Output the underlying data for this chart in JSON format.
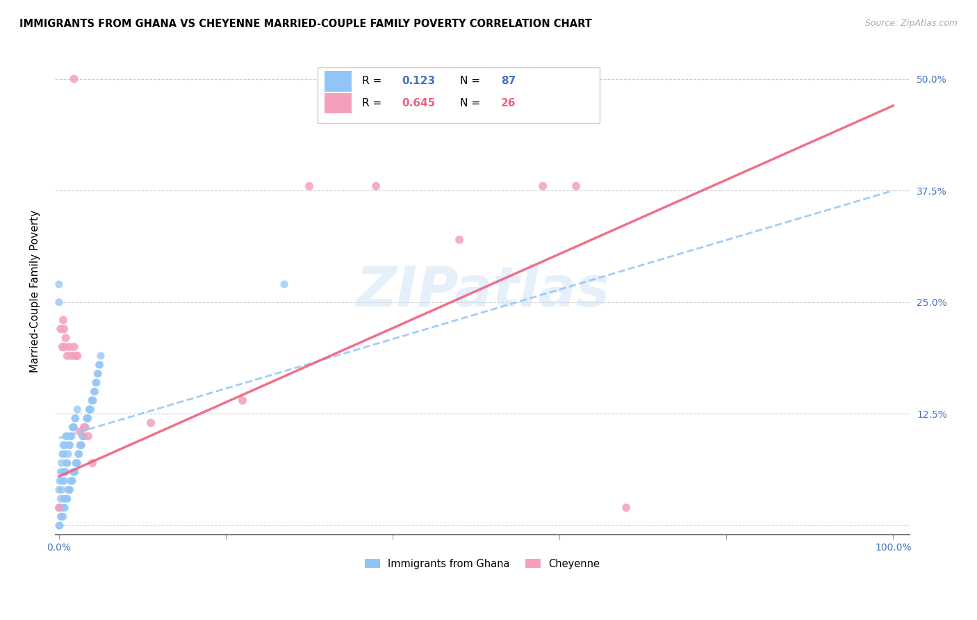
{
  "title": "IMMIGRANTS FROM GHANA VS CHEYENNE MARRIED-COUPLE FAMILY POVERTY CORRELATION CHART",
  "source": "Source: ZipAtlas.com",
  "ylabel": "Married-Couple Family Poverty",
  "watermark": "ZIPatlas",
  "ghana_color": "#92c5f7",
  "cheyenne_color": "#f4a0bc",
  "ghana_line_color": "#92c5f7",
  "cheyenne_line_color": "#f06080",
  "ghana_R": 0.123,
  "ghana_N": 87,
  "cheyenne_R": 0.645,
  "cheyenne_N": 26,
  "ghana_line_x0": 0.0,
  "ghana_line_y0": 0.098,
  "ghana_line_x1": 1.0,
  "ghana_line_y1": 0.375,
  "cheyenne_line_x0": 0.0,
  "cheyenne_line_y0": 0.055,
  "cheyenne_line_x1": 1.0,
  "cheyenne_line_y1": 0.47,
  "xlim": [
    0.0,
    1.0
  ],
  "ylim": [
    0.0,
    0.52
  ],
  "ytick_values": [
    0.0,
    0.125,
    0.25,
    0.375,
    0.5
  ],
  "ytick_labels": [
    "",
    "12.5%",
    "25.0%",
    "37.5%",
    "50.0%"
  ],
  "ghana_x": [
    0.0,
    0.0,
    0.0,
    0.001,
    0.001,
    0.001,
    0.002,
    0.002,
    0.002,
    0.003,
    0.003,
    0.003,
    0.004,
    0.004,
    0.004,
    0.005,
    0.005,
    0.005,
    0.005,
    0.006,
    0.006,
    0.006,
    0.007,
    0.007,
    0.007,
    0.008,
    0.008,
    0.008,
    0.009,
    0.009,
    0.01,
    0.01,
    0.01,
    0.011,
    0.011,
    0.012,
    0.012,
    0.013,
    0.013,
    0.014,
    0.014,
    0.015,
    0.015,
    0.016,
    0.016,
    0.017,
    0.017,
    0.018,
    0.018,
    0.019,
    0.019,
    0.02,
    0.02,
    0.021,
    0.022,
    0.022,
    0.023,
    0.024,
    0.025,
    0.026,
    0.027,
    0.028,
    0.029,
    0.03,
    0.031,
    0.032,
    0.033,
    0.034,
    0.035,
    0.036,
    0.037,
    0.038,
    0.039,
    0.04,
    0.041,
    0.042,
    0.043,
    0.044,
    0.045,
    0.046,
    0.047,
    0.048,
    0.049,
    0.05,
    0.0,
    0.0,
    0.27
  ],
  "ghana_y": [
    0.0,
    0.02,
    0.04,
    0.0,
    0.02,
    0.05,
    0.01,
    0.03,
    0.06,
    0.01,
    0.04,
    0.07,
    0.02,
    0.05,
    0.08,
    0.01,
    0.03,
    0.06,
    0.09,
    0.02,
    0.05,
    0.08,
    0.02,
    0.06,
    0.09,
    0.03,
    0.06,
    0.1,
    0.03,
    0.07,
    0.03,
    0.07,
    0.1,
    0.04,
    0.08,
    0.04,
    0.09,
    0.04,
    0.09,
    0.05,
    0.1,
    0.05,
    0.1,
    0.05,
    0.11,
    0.06,
    0.11,
    0.06,
    0.11,
    0.06,
    0.12,
    0.07,
    0.12,
    0.07,
    0.07,
    0.13,
    0.08,
    0.08,
    0.09,
    0.09,
    0.09,
    0.1,
    0.1,
    0.1,
    0.11,
    0.11,
    0.12,
    0.12,
    0.12,
    0.13,
    0.13,
    0.13,
    0.14,
    0.14,
    0.14,
    0.15,
    0.15,
    0.16,
    0.16,
    0.17,
    0.17,
    0.18,
    0.18,
    0.19,
    0.25,
    0.27,
    0.27
  ],
  "cheyenne_x": [
    0.018,
    0.0,
    0.002,
    0.004,
    0.005,
    0.006,
    0.007,
    0.008,
    0.01,
    0.012,
    0.015,
    0.018,
    0.02,
    0.022,
    0.025,
    0.03,
    0.035,
    0.04,
    0.11,
    0.22,
    0.3,
    0.38,
    0.48,
    0.58,
    0.62,
    0.68
  ],
  "cheyenne_y": [
    0.5,
    0.02,
    0.22,
    0.2,
    0.23,
    0.22,
    0.2,
    0.21,
    0.19,
    0.2,
    0.19,
    0.2,
    0.19,
    0.19,
    0.105,
    0.11,
    0.1,
    0.07,
    0.115,
    0.14,
    0.38,
    0.38,
    0.32,
    0.38,
    0.38,
    0.02
  ]
}
